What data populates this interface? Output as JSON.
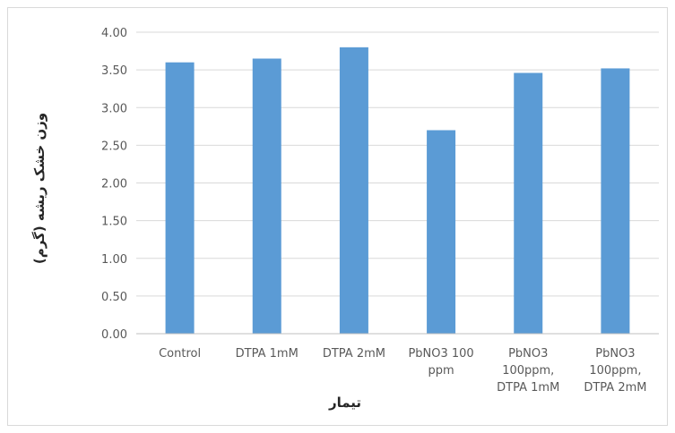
{
  "chart_data": {
    "type": "bar",
    "title": "",
    "xlabel": "تیمار",
    "ylabel": "وزن خشک ریشه (گرم)",
    "categories": [
      [
        "Control"
      ],
      [
        "DTPA 1mM"
      ],
      [
        "DTPA 2mM"
      ],
      [
        "PbNO3 100",
        "ppm"
      ],
      [
        "PbNO3",
        "100ppm,",
        "DTPA 1mM"
      ],
      [
        "PbNO3",
        "100ppm,",
        "DTPA 2mM"
      ]
    ],
    "values": [
      3.6,
      3.65,
      3.8,
      2.7,
      3.46,
      3.52
    ],
    "ylim": [
      0,
      4
    ],
    "yticks": [
      "0.00",
      "0.50",
      "1.00",
      "1.50",
      "2.00",
      "2.50",
      "3.00",
      "3.50",
      "4.00"
    ],
    "ytick_values": [
      0,
      0.5,
      1,
      1.5,
      2,
      2.5,
      3,
      3.5,
      4
    ],
    "grid": true,
    "legend": "none",
    "colors": {
      "bar": "#5b9bd5",
      "grid": "#d9d9d9",
      "axis": "#bfbfbf"
    }
  }
}
